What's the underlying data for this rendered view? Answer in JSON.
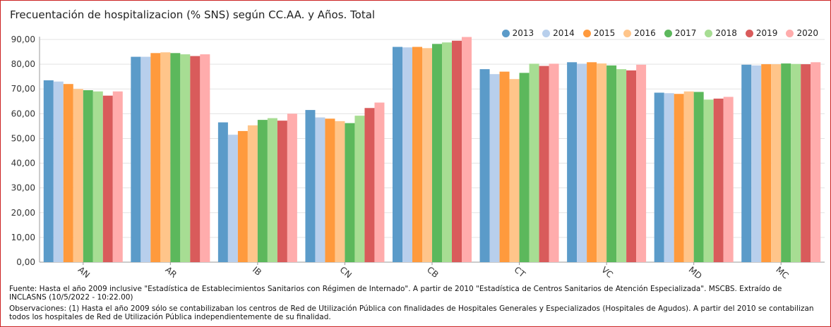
{
  "chart_data": {
    "type": "bar",
    "title": "Frecuentación de hospitalizacion (% SNS) según CC.AA. y Años. Total",
    "xlabel": "",
    "ylabel": "",
    "ylim": [
      0,
      90
    ],
    "yticks": [
      "0,00",
      "10,00",
      "20,00",
      "30,00",
      "40,00",
      "50,00",
      "60,00",
      "70,00",
      "80,00",
      "90,00"
    ],
    "legend_position": "top-right",
    "categories": [
      "AN",
      "AR",
      "IB",
      "CN",
      "CB",
      "CT",
      "VC",
      "MD",
      "MC"
    ],
    "series": [
      {
        "name": "2013",
        "color": "#5b9bc9",
        "values": [
          73.5,
          83.0,
          56.5,
          61.5,
          87.0,
          78.0,
          80.8,
          68.5,
          79.8
        ]
      },
      {
        "name": "2014",
        "color": "#b8cfec",
        "values": [
          73.0,
          83.0,
          51.5,
          58.5,
          86.8,
          76.0,
          80.2,
          68.3,
          79.5
        ]
      },
      {
        "name": "2015",
        "color": "#ff9a3d",
        "values": [
          72.0,
          84.5,
          53.0,
          58.0,
          87.0,
          77.0,
          80.8,
          68.0,
          80.0
        ]
      },
      {
        "name": "2016",
        "color": "#ffc58a",
        "values": [
          70.0,
          84.8,
          55.3,
          57.0,
          86.5,
          74.0,
          80.3,
          69.0,
          80.0
        ]
      },
      {
        "name": "2017",
        "color": "#5cb85c",
        "values": [
          69.5,
          84.5,
          57.5,
          56.2,
          88.2,
          76.5,
          79.5,
          68.8,
          80.3
        ]
      },
      {
        "name": "2018",
        "color": "#a7dd93",
        "values": [
          69.0,
          84.0,
          58.2,
          59.2,
          88.8,
          80.2,
          78.0,
          65.7,
          80.1
        ]
      },
      {
        "name": "2019",
        "color": "#d95b5b",
        "values": [
          67.3,
          83.3,
          57.2,
          62.3,
          89.5,
          79.3,
          77.5,
          66.1,
          80.0
        ]
      },
      {
        "name": "2020",
        "color": "#ffacac",
        "values": [
          69.0,
          84.0,
          60.0,
          64.5,
          91.0,
          80.2,
          79.8,
          66.8,
          80.8
        ]
      }
    ]
  },
  "notes": {
    "fuente": "Fuente: Hasta el año 2009 inclusive \"Estadística de Establecimientos Sanitarios con Régimen de Internado\". A partir de 2010 \"Estadística de Centros Sanitarios de Atención Especializada\". MSCBS. Extraído de INCLASNS (10/5/2022 - 10:22.00)",
    "observaciones": "Observaciones: (1) Hasta el año 2009 sólo se contabilizaban los centros de Red de Utilización Pública con finalidades de Hospitales Generales y Especializados (Hospitales de Agudos). A partir del 2010 se contabilizan todos los hospitales de Red de Utilización Pública independientemente de su finalidad."
  }
}
